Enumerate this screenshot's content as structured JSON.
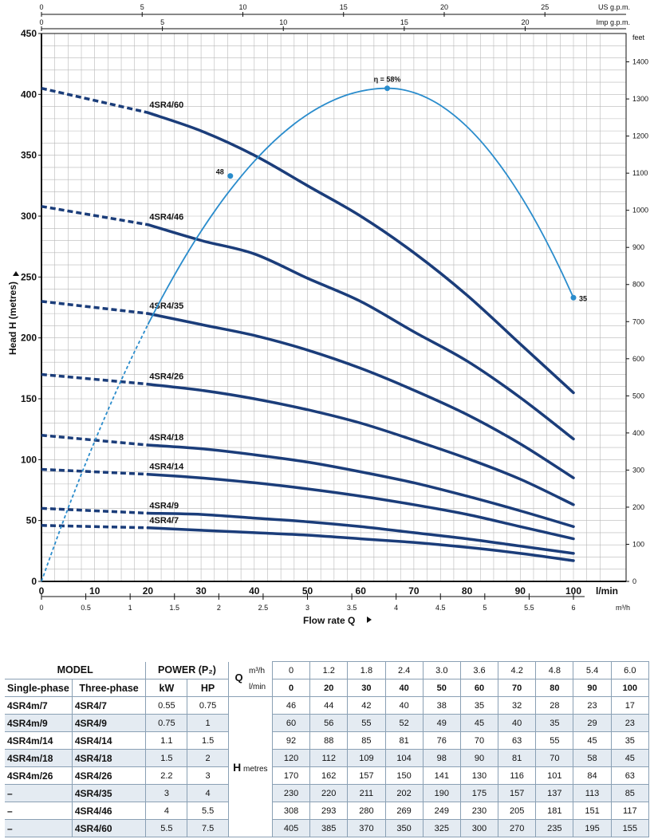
{
  "chart_data": {
    "type": "line",
    "xlabel": "Flow rate Q",
    "ylabel": "Head H (metres)",
    "x_unit": "l/min",
    "x_unit2": "m³/h",
    "top_unit1": "US g.p.m.",
    "top_unit2": "Imp g.p.m.",
    "right_unit": "feet",
    "xlim": [
      0,
      100
    ],
    "ylim": [
      0,
      450
    ],
    "x_ticks": [
      "0",
      "10",
      "20",
      "30",
      "40",
      "50",
      "60",
      "70",
      "80",
      "90",
      "100"
    ],
    "y_ticks": [
      "0",
      "50",
      "100",
      "150",
      "200",
      "250",
      "300",
      "350",
      "400",
      "450"
    ],
    "m3h_ticks": [
      "0",
      "0.5",
      "1",
      "1.5",
      "2",
      "2.5",
      "3",
      "3.5",
      "4",
      "4.5",
      "5",
      "5.5",
      "6"
    ],
    "usgpm_ticks": [
      "0",
      "5",
      "10",
      "15",
      "20",
      "25"
    ],
    "impgpm_ticks": [
      "0",
      "5",
      "10",
      "15",
      "20"
    ],
    "feet_ticks": [
      "0",
      "100",
      "200",
      "300",
      "400",
      "500",
      "600",
      "700",
      "800",
      "900",
      "1000",
      "1100",
      "1200",
      "1300",
      "1400"
    ],
    "x": [
      0,
      20,
      30,
      40,
      50,
      60,
      70,
      80,
      90,
      100
    ],
    "series": [
      {
        "name": "4SR4/60",
        "values": [
          405,
          385,
          370,
          350,
          325,
          300,
          270,
          235,
          195,
          155
        ]
      },
      {
        "name": "4SR4/46",
        "values": [
          308,
          293,
          280,
          269,
          249,
          230,
          205,
          181,
          151,
          117
        ]
      },
      {
        "name": "4SR4/35",
        "values": [
          230,
          220,
          211,
          202,
          190,
          175,
          157,
          137,
          113,
          85
        ]
      },
      {
        "name": "4SR4/26",
        "values": [
          170,
          162,
          157,
          150,
          141,
          130,
          116,
          101,
          84,
          63
        ]
      },
      {
        "name": "4SR4/18",
        "values": [
          120,
          112,
          109,
          104,
          98,
          90,
          81,
          70,
          58,
          45
        ]
      },
      {
        "name": "4SR4/14",
        "values": [
          92,
          88,
          85,
          81,
          76,
          70,
          63,
          55,
          45,
          35
        ]
      },
      {
        "name": "4SR4/9",
        "values": [
          60,
          56,
          55,
          52,
          49,
          45,
          40,
          35,
          29,
          23
        ]
      },
      {
        "name": "4SR4/7",
        "values": [
          46,
          44,
          42,
          40,
          38,
          35,
          32,
          28,
          23,
          17
        ]
      }
    ],
    "efficiency_points": [
      {
        "label": "48",
        "x": 35.5,
        "y": 333
      },
      {
        "label": "η = 58%",
        "x": 65,
        "y": 405
      },
      {
        "label": "35",
        "x": 100,
        "y": 233
      }
    ],
    "grid": true,
    "colors": {
      "pump_curve": "#1b3d7a",
      "efficiency_curve": "#2a8ccc",
      "grid": "#b8b8b8"
    }
  },
  "table": {
    "model_header": "MODEL",
    "single_header": "Single-phase",
    "three_header": "Three-phase",
    "power_header": "POWER (P₂)",
    "kw_header": "kW",
    "hp_header": "HP",
    "q_label": "Q",
    "q_unit1": "m³/h",
    "q_unit2": "l/min",
    "h_label": "H",
    "h_unit": "metres",
    "flow_m3h": [
      "0",
      "1.2",
      "1.8",
      "2.4",
      "3.0",
      "3.6",
      "4.2",
      "4.8",
      "5.4",
      "6.0"
    ],
    "flow_lmin": [
      "0",
      "20",
      "30",
      "40",
      "50",
      "60",
      "70",
      "80",
      "90",
      "100"
    ],
    "rows": [
      {
        "single": "4SR4m/7",
        "three": "4SR4/7",
        "kw": "0.55",
        "hp": "0.75",
        "h": [
          "46",
          "44",
          "42",
          "40",
          "38",
          "35",
          "32",
          "28",
          "23",
          "17"
        ]
      },
      {
        "single": "4SR4m/9",
        "three": "4SR4/9",
        "kw": "0.75",
        "hp": "1",
        "h": [
          "60",
          "56",
          "55",
          "52",
          "49",
          "45",
          "40",
          "35",
          "29",
          "23"
        ]
      },
      {
        "single": "4SR4m/14",
        "three": "4SR4/14",
        "kw": "1.1",
        "hp": "1.5",
        "h": [
          "92",
          "88",
          "85",
          "81",
          "76",
          "70",
          "63",
          "55",
          "45",
          "35"
        ]
      },
      {
        "single": "4SR4m/18",
        "three": "4SR4/18",
        "kw": "1.5",
        "hp": "2",
        "h": [
          "120",
          "112",
          "109",
          "104",
          "98",
          "90",
          "81",
          "70",
          "58",
          "45"
        ]
      },
      {
        "single": "4SR4m/26",
        "three": "4SR4/26",
        "kw": "2.2",
        "hp": "3",
        "h": [
          "170",
          "162",
          "157",
          "150",
          "141",
          "130",
          "116",
          "101",
          "84",
          "63"
        ]
      },
      {
        "single": "–",
        "three": "4SR4/35",
        "kw": "3",
        "hp": "4",
        "h": [
          "230",
          "220",
          "211",
          "202",
          "190",
          "175",
          "157",
          "137",
          "113",
          "85"
        ]
      },
      {
        "single": "–",
        "three": "4SR4/46",
        "kw": "4",
        "hp": "5.5",
        "h": [
          "308",
          "293",
          "280",
          "269",
          "249",
          "230",
          "205",
          "181",
          "151",
          "117"
        ]
      },
      {
        "single": "–",
        "three": "4SR4/60",
        "kw": "5.5",
        "hp": "7.5",
        "h": [
          "405",
          "385",
          "370",
          "350",
          "325",
          "300",
          "270",
          "235",
          "195",
          "155"
        ]
      }
    ]
  }
}
